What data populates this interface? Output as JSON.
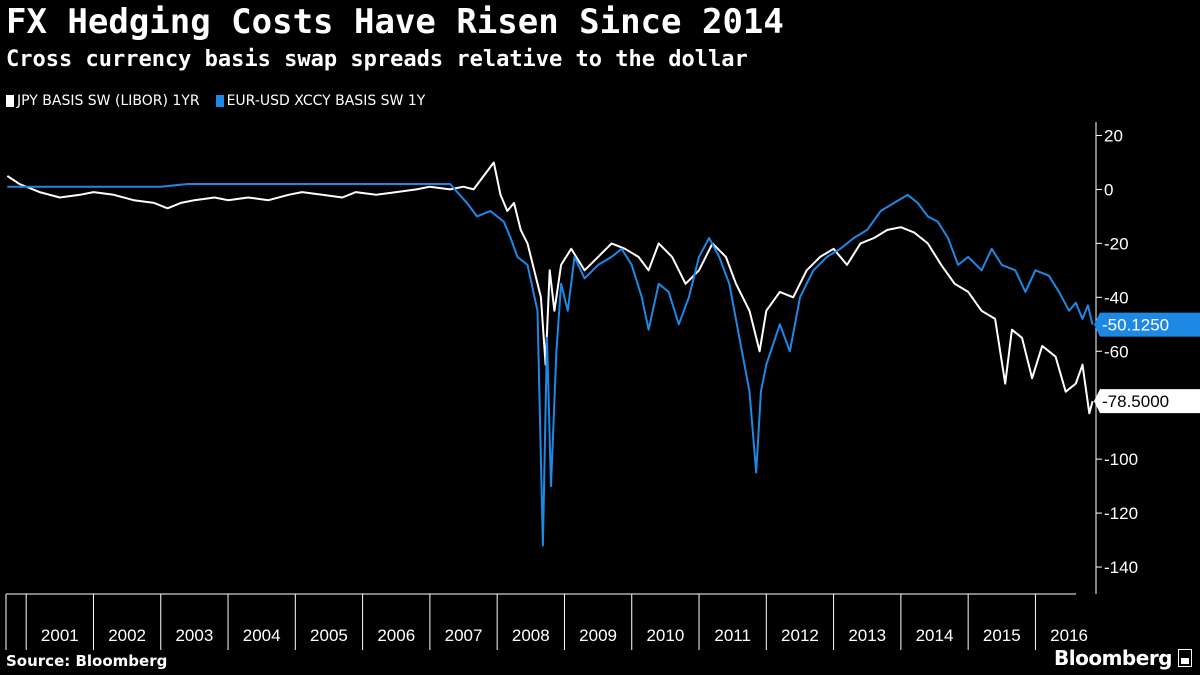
{
  "title": "FX Hedging Costs Have Risen Since 2014",
  "subtitle": "Cross currency basis swap spreads relative to the dollar",
  "source": "Source: Bloomberg",
  "brand": "Bloomberg",
  "colors": {
    "background": "#000000",
    "jpy": "#ffffff",
    "eur": "#1e88e5"
  },
  "chart_data": {
    "type": "line",
    "x_unit": "year",
    "x_range": [
      2000.7,
      2016.9
    ],
    "ylim": [
      -150,
      25
    ],
    "yticks": [
      20,
      0,
      -20,
      -40,
      -60,
      -80,
      -100,
      -120,
      -140
    ],
    "ytick_labels": [
      "20",
      "0",
      "-20",
      "-40",
      "-60",
      "",
      "-100",
      "-120",
      "-140"
    ],
    "xtick_labels": [
      "2001",
      "2002",
      "2003",
      "2004",
      "2005",
      "2006",
      "2007",
      "2008",
      "2009",
      "2010",
      "2011",
      "2012",
      "2013",
      "2014",
      "2015",
      "2016"
    ],
    "legend_position": "top-left",
    "series": [
      {
        "name": "JPY BASIS SW (LIBOR) 1YR",
        "color": "#ffffff",
        "last_value": "-78.5000",
        "points": [
          [
            2000.72,
            5
          ],
          [
            2000.9,
            2
          ],
          [
            2001.2,
            -1
          ],
          [
            2001.5,
            -3
          ],
          [
            2001.8,
            -2
          ],
          [
            2002.0,
            -1
          ],
          [
            2002.3,
            -2
          ],
          [
            2002.6,
            -4
          ],
          [
            2002.9,
            -5
          ],
          [
            2003.1,
            -7
          ],
          [
            2003.3,
            -5
          ],
          [
            2003.5,
            -4
          ],
          [
            2003.8,
            -3
          ],
          [
            2004.0,
            -4
          ],
          [
            2004.3,
            -3
          ],
          [
            2004.6,
            -4
          ],
          [
            2004.9,
            -2
          ],
          [
            2005.1,
            -1
          ],
          [
            2005.4,
            -2
          ],
          [
            2005.7,
            -3
          ],
          [
            2005.9,
            -1
          ],
          [
            2006.2,
            -2
          ],
          [
            2006.5,
            -1
          ],
          [
            2006.8,
            0
          ],
          [
            2007.0,
            1
          ],
          [
            2007.3,
            0
          ],
          [
            2007.5,
            1
          ],
          [
            2007.65,
            0
          ],
          [
            2007.8,
            5
          ],
          [
            2007.95,
            10
          ],
          [
            2008.05,
            -2
          ],
          [
            2008.15,
            -8
          ],
          [
            2008.25,
            -5
          ],
          [
            2008.35,
            -15
          ],
          [
            2008.45,
            -20
          ],
          [
            2008.55,
            -30
          ],
          [
            2008.65,
            -40
          ],
          [
            2008.72,
            -65
          ],
          [
            2008.78,
            -30
          ],
          [
            2008.85,
            -45
          ],
          [
            2008.95,
            -28
          ],
          [
            2009.1,
            -22
          ],
          [
            2009.3,
            -30
          ],
          [
            2009.5,
            -25
          ],
          [
            2009.7,
            -20
          ],
          [
            2009.9,
            -22
          ],
          [
            2010.1,
            -25
          ],
          [
            2010.25,
            -30
          ],
          [
            2010.4,
            -20
          ],
          [
            2010.6,
            -25
          ],
          [
            2010.8,
            -35
          ],
          [
            2011.0,
            -30
          ],
          [
            2011.2,
            -20
          ],
          [
            2011.4,
            -25
          ],
          [
            2011.55,
            -35
          ],
          [
            2011.75,
            -45
          ],
          [
            2011.9,
            -60
          ],
          [
            2012.0,
            -45
          ],
          [
            2012.2,
            -38
          ],
          [
            2012.4,
            -40
          ],
          [
            2012.6,
            -30
          ],
          [
            2012.8,
            -25
          ],
          [
            2013.0,
            -22
          ],
          [
            2013.2,
            -28
          ],
          [
            2013.4,
            -20
          ],
          [
            2013.6,
            -18
          ],
          [
            2013.8,
            -15
          ],
          [
            2014.0,
            -14
          ],
          [
            2014.2,
            -16
          ],
          [
            2014.4,
            -20
          ],
          [
            2014.6,
            -28
          ],
          [
            2014.8,
            -35
          ],
          [
            2015.0,
            -38
          ],
          [
            2015.2,
            -45
          ],
          [
            2015.4,
            -48
          ],
          [
            2015.55,
            -72
          ],
          [
            2015.65,
            -52
          ],
          [
            2015.8,
            -55
          ],
          [
            2015.95,
            -70
          ],
          [
            2016.1,
            -58
          ],
          [
            2016.3,
            -62
          ],
          [
            2016.45,
            -75
          ],
          [
            2016.6,
            -72
          ],
          [
            2016.7,
            -65
          ],
          [
            2016.8,
            -83
          ],
          [
            2016.85,
            -78.5
          ]
        ]
      },
      {
        "name": "EUR-USD XCCY BASIS SW 1Y",
        "color": "#1e88e5",
        "last_value": "-50.1250",
        "points": [
          [
            2000.72,
            1
          ],
          [
            2001.0,
            1
          ],
          [
            2001.4,
            1
          ],
          [
            2001.8,
            1
          ],
          [
            2002.2,
            1
          ],
          [
            2002.6,
            1
          ],
          [
            2003.0,
            1
          ],
          [
            2003.4,
            2
          ],
          [
            2003.8,
            2
          ],
          [
            2004.2,
            2
          ],
          [
            2004.6,
            2
          ],
          [
            2005.0,
            2
          ],
          [
            2005.4,
            2
          ],
          [
            2005.8,
            2
          ],
          [
            2006.2,
            2
          ],
          [
            2006.6,
            2
          ],
          [
            2007.0,
            2
          ],
          [
            2007.3,
            2
          ],
          [
            2007.55,
            -5
          ],
          [
            2007.7,
            -10
          ],
          [
            2007.9,
            -8
          ],
          [
            2008.1,
            -12
          ],
          [
            2008.2,
            -18
          ],
          [
            2008.3,
            -25
          ],
          [
            2008.45,
            -28
          ],
          [
            2008.6,
            -45
          ],
          [
            2008.68,
            -132
          ],
          [
            2008.74,
            -55
          ],
          [
            2008.8,
            -110
          ],
          [
            2008.88,
            -60
          ],
          [
            2008.95,
            -35
          ],
          [
            2009.05,
            -45
          ],
          [
            2009.15,
            -25
          ],
          [
            2009.3,
            -33
          ],
          [
            2009.5,
            -28
          ],
          [
            2009.7,
            -25
          ],
          [
            2009.85,
            -22
          ],
          [
            2010.0,
            -28
          ],
          [
            2010.15,
            -40
          ],
          [
            2010.25,
            -52
          ],
          [
            2010.4,
            -35
          ],
          [
            2010.55,
            -38
          ],
          [
            2010.7,
            -50
          ],
          [
            2010.85,
            -40
          ],
          [
            2011.0,
            -25
          ],
          [
            2011.15,
            -18
          ],
          [
            2011.3,
            -25
          ],
          [
            2011.45,
            -35
          ],
          [
            2011.6,
            -55
          ],
          [
            2011.75,
            -75
          ],
          [
            2011.85,
            -105
          ],
          [
            2011.92,
            -75
          ],
          [
            2012.0,
            -65
          ],
          [
            2012.2,
            -50
          ],
          [
            2012.35,
            -60
          ],
          [
            2012.5,
            -40
          ],
          [
            2012.7,
            -30
          ],
          [
            2012.9,
            -25
          ],
          [
            2013.1,
            -22
          ],
          [
            2013.3,
            -18
          ],
          [
            2013.5,
            -15
          ],
          [
            2013.7,
            -8
          ],
          [
            2013.9,
            -5
          ],
          [
            2014.1,
            -2
          ],
          [
            2014.25,
            -5
          ],
          [
            2014.4,
            -10
          ],
          [
            2014.55,
            -12
          ],
          [
            2014.7,
            -18
          ],
          [
            2014.85,
            -28
          ],
          [
            2015.0,
            -25
          ],
          [
            2015.2,
            -30
          ],
          [
            2015.35,
            -22
          ],
          [
            2015.5,
            -28
          ],
          [
            2015.7,
            -30
          ],
          [
            2015.85,
            -38
          ],
          [
            2016.0,
            -30
          ],
          [
            2016.2,
            -32
          ],
          [
            2016.35,
            -38
          ],
          [
            2016.5,
            -45
          ],
          [
            2016.6,
            -42
          ],
          [
            2016.7,
            -48
          ],
          [
            2016.78,
            -43
          ],
          [
            2016.85,
            -50.125
          ]
        ]
      }
    ]
  }
}
